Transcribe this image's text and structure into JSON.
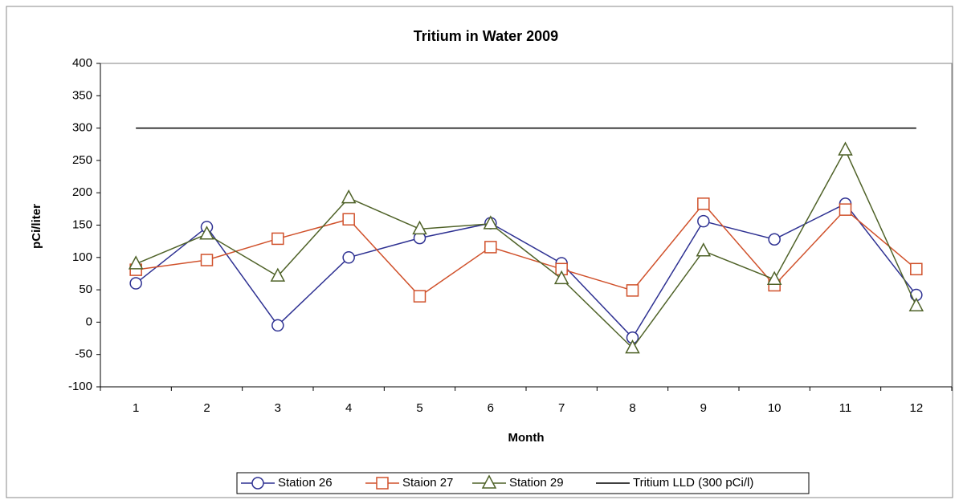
{
  "chart_data": {
    "type": "line",
    "title": "Tritium in Water 2009",
    "x_label": "Month",
    "y_label": "pCi/liter",
    "categories": [
      "1",
      "2",
      "3",
      "4",
      "5",
      "6",
      "7",
      "8",
      "9",
      "10",
      "11",
      "12"
    ],
    "series": [
      {
        "name": "Station 26",
        "color": "#2e3192",
        "marker": "circle",
        "values": [
          60,
          147,
          -5,
          100,
          130,
          153,
          91,
          -24,
          156,
          128,
          183,
          42
        ]
      },
      {
        "name": "Staion 27",
        "color": "#d0512b",
        "marker": "square",
        "values": [
          81,
          96,
          129,
          159,
          40,
          116,
          82,
          49,
          183,
          57,
          174,
          82
        ]
      },
      {
        "name": "Station 29",
        "color": "#4f6228",
        "marker": "triangle",
        "values": [
          90,
          136,
          71,
          192,
          144,
          152,
          67,
          -40,
          110,
          66,
          266,
          25
        ]
      },
      {
        "name": "Tritium LLD (300 pCi/l)",
        "color": "#000000",
        "values": [
          300,
          300,
          300,
          300,
          300,
          300,
          300,
          300,
          300,
          300,
          300,
          300
        ]
      }
    ],
    "ylim": [
      -100,
      400
    ],
    "yticks": [
      -100,
      -50,
      0,
      50,
      100,
      150,
      200,
      250,
      300,
      350,
      400
    ],
    "grid": false,
    "legend": "bottom"
  }
}
